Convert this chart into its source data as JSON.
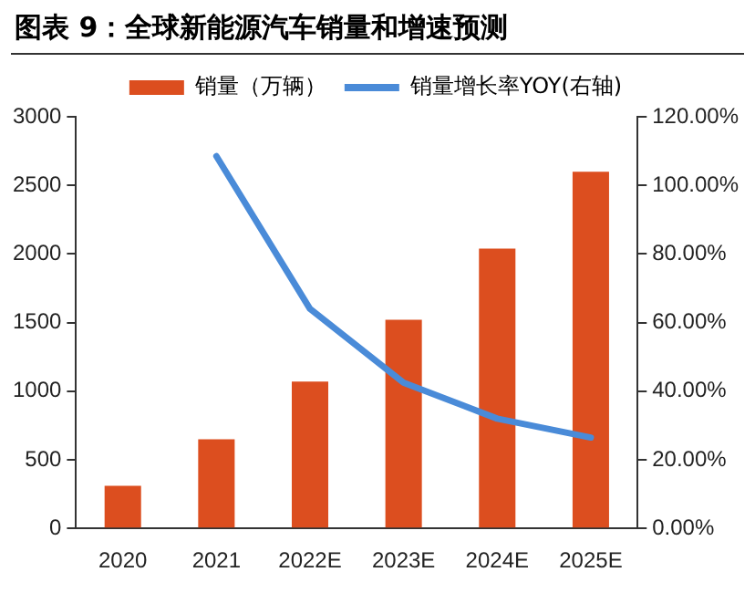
{
  "chart_data": {
    "type": "bar",
    "title": "图表 9：全球新能源汽车销量和增速预测",
    "categories": [
      "2020",
      "2021",
      "2022E",
      "2023E",
      "2024E",
      "2025E"
    ],
    "series": [
      {
        "name": "销量（万辆）",
        "color": "#dc4e1f",
        "values": [
          310,
          650,
          1070,
          1520,
          2040,
          2600
        ]
      },
      {
        "name": "销量增长率YOY(右轴)",
        "type": "line",
        "axis": "y2",
        "color": "#4a8bd8",
        "values": [
          null,
          108.5,
          64,
          42.5,
          32,
          26.5
        ]
      }
    ],
    "ylim": [
      0,
      3000
    ],
    "yticks": [
      0,
      500,
      1000,
      1500,
      2000,
      2500,
      3000
    ],
    "y2lim": [
      0,
      120
    ],
    "y2ticks": [
      {
        "value": 0,
        "label": "0.00%"
      },
      {
        "value": 20,
        "label": "20.00%"
      },
      {
        "value": 40,
        "label": "40.00%"
      },
      {
        "value": 60,
        "label": "60.00%"
      },
      {
        "value": 80,
        "label": "80.00%"
      },
      {
        "value": 100,
        "label": "100.00%"
      },
      {
        "value": 120,
        "label": "120.00%"
      }
    ],
    "grid": false,
    "legend": "top",
    "marker": "none",
    "line_style": "solid"
  }
}
